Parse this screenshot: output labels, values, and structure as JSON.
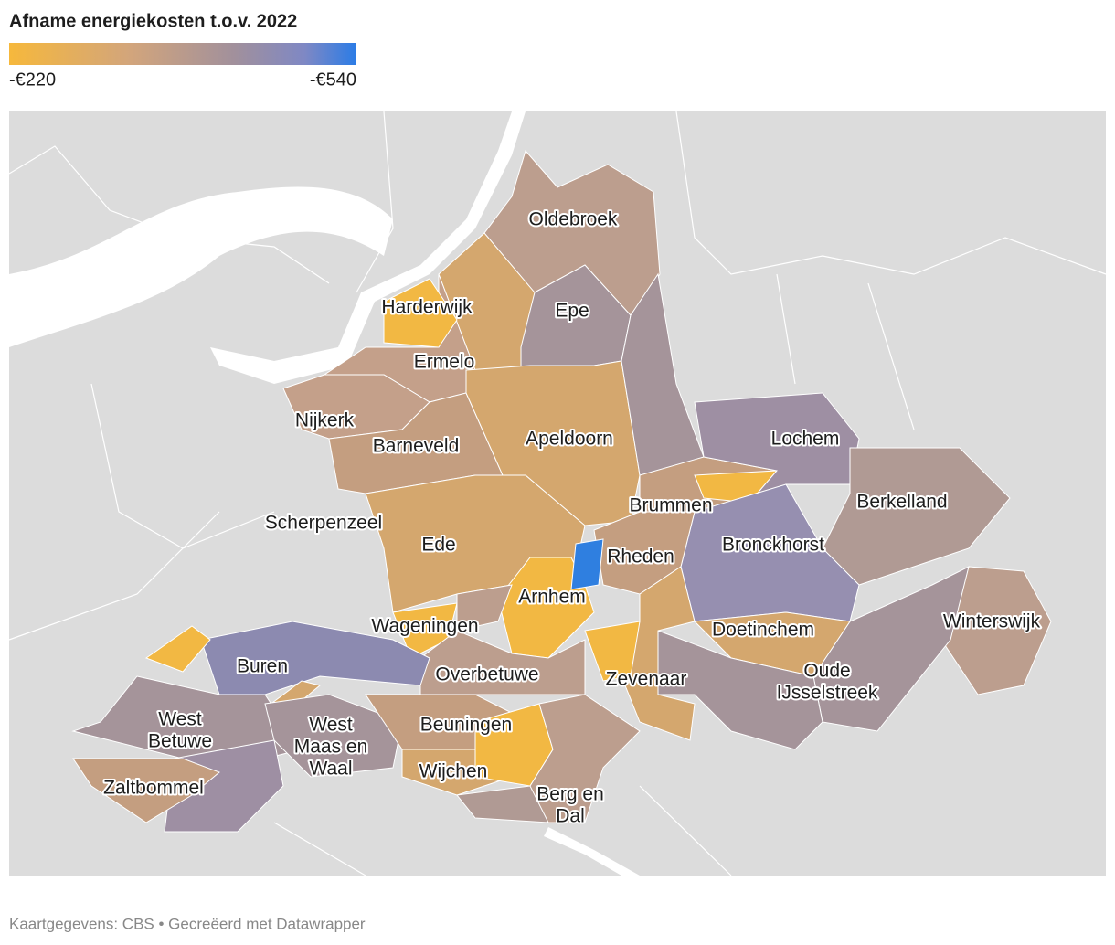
{
  "title": "Afname energiekosten t.o.v. 2022",
  "legend": {
    "min_label": "-€220",
    "max_label": "-€540"
  },
  "labels": [
    [
      "Oldebroek"
    ],
    [
      "Harderwijk"
    ],
    [
      "Epe"
    ],
    [
      "Ermelo"
    ],
    [
      "Nijkerk"
    ],
    [
      "Barneveld"
    ],
    [
      "Apeldoorn"
    ],
    [
      "Lochem"
    ],
    [
      "Berkelland"
    ],
    [
      "Brummen"
    ],
    [
      "Scherpenzeel"
    ],
    [
      "Ede"
    ],
    [
      "Rheden"
    ],
    [
      "Bronckhorst"
    ],
    [
      "Arnhem"
    ],
    [
      "Wageningen"
    ],
    [
      "Doetinchem"
    ],
    [
      "Winterswijk"
    ],
    [
      "Buren"
    ],
    [
      "Overbetuwe"
    ],
    [
      "Zevenaar"
    ],
    [
      "Oude",
      "IJsselstreek"
    ],
    [
      "West",
      "Betuwe"
    ],
    [
      "West",
      "Maas en",
      "Waal"
    ],
    [
      "Beuningen"
    ],
    [
      "Zaltbommel"
    ],
    [
      "Wijchen"
    ],
    [
      "Berg en",
      "Dal"
    ]
  ],
  "footer": "Kaartgegevens: CBS • Gecreëerd met Datawrapper"
}
